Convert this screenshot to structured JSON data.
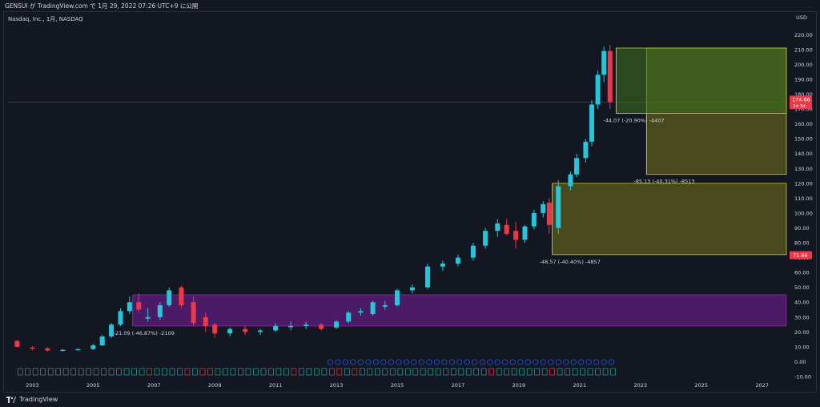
{
  "header": {
    "publish_text": "GENSUI が TradingView.com で 1月 29, 2022 07:26 UTC+9 に公開"
  },
  "symbol": {
    "label": "Nasdaq, Inc., 1月, NASDAQ"
  },
  "footer": {
    "brand": "TradingView",
    "logo_icon": "tradingview-logo-icon"
  },
  "price_scale": {
    "currency": "USD",
    "ticks": [
      "220.00",
      "210.00",
      "200.00",
      "190.00",
      "180.00",
      "170.00",
      "160.00",
      "150.00",
      "140.00",
      "130.00",
      "120.00",
      "110.00",
      "100.00",
      "90.00",
      "80.00",
      "70.00",
      "60.00",
      "50.00",
      "40.00",
      "30.00",
      "20.00",
      "10.00",
      "0.00",
      "-10.00"
    ],
    "last_price_label": "174.66",
    "last_price_countdown": "2d 3d",
    "marker_label": "71.66"
  },
  "time_axis": {
    "labels": [
      "2003",
      "2005",
      "2007",
      "2009",
      "2011",
      "2013",
      "2015",
      "2017",
      "2019",
      "2021",
      "2023",
      "2025",
      "2027"
    ]
  },
  "colors": {
    "background": "#131722",
    "up": "#26c6da",
    "down": "#f23645",
    "purple_box": "#7b1fa2",
    "olive_box": "#6d6a1a",
    "green_box": "#3a6b1e",
    "box_border": "#c0ca33",
    "grid": "#1e222d",
    "axis_text": "#d1d4dc",
    "earnings_border": "#787b86",
    "dividend_border": "#2962ff",
    "price_tag": "#f23645"
  },
  "annotations": {
    "box1": "-21.09 (-46.87%) -2109",
    "box2": "-48.57 (-40.40%) -4857",
    "box3": "-85.13 (-40.31%) -8513",
    "box4": "-44.07 (-20.90%) -4407"
  },
  "chart_data": {
    "type": "candlestick",
    "title": "",
    "xlabel": "",
    "ylabel": "USD",
    "ylim": [
      -10,
      225
    ],
    "xlim": [
      2002.2,
      2027.8
    ],
    "grid": false,
    "last_price": 174.66,
    "candles": [
      {
        "t": 2002.5,
        "o": 14,
        "h": 14.5,
        "l": 10,
        "c": 10
      },
      {
        "t": 2003.0,
        "o": 9.5,
        "h": 10.5,
        "l": 8,
        "c": 9
      },
      {
        "t": 2003.5,
        "o": 9,
        "h": 9.5,
        "l": 7,
        "c": 7.5
      },
      {
        "t": 2004.0,
        "o": 7.5,
        "h": 8.5,
        "l": 7,
        "c": 8
      },
      {
        "t": 2004.5,
        "o": 8,
        "h": 9,
        "l": 7.5,
        "c": 8.5
      },
      {
        "t": 2005.0,
        "o": 8.5,
        "h": 12,
        "l": 8,
        "c": 11
      },
      {
        "t": 2005.3,
        "o": 11,
        "h": 18,
        "l": 10.5,
        "c": 17
      },
      {
        "t": 2005.6,
        "o": 17,
        "h": 26,
        "l": 16,
        "c": 25
      },
      {
        "t": 2005.9,
        "o": 25,
        "h": 36,
        "l": 24,
        "c": 34
      },
      {
        "t": 2006.2,
        "o": 34,
        "h": 44,
        "l": 32,
        "c": 40
      },
      {
        "t": 2006.5,
        "o": 40,
        "h": 46,
        "l": 33,
        "c": 35
      },
      {
        "t": 2006.8,
        "o": 29,
        "h": 36,
        "l": 27,
        "c": 30
      },
      {
        "t": 2007.2,
        "o": 30,
        "h": 40,
        "l": 28,
        "c": 38
      },
      {
        "t": 2007.5,
        "o": 38,
        "h": 50,
        "l": 37,
        "c": 48
      },
      {
        "t": 2007.9,
        "o": 50,
        "h": 51,
        "l": 36,
        "c": 38
      },
      {
        "t": 2008.3,
        "o": 40,
        "h": 44,
        "l": 24,
        "c": 26
      },
      {
        "t": 2008.7,
        "o": 30,
        "h": 33,
        "l": 20,
        "c": 24
      },
      {
        "t": 2009.0,
        "o": 25,
        "h": 26,
        "l": 16,
        "c": 19
      },
      {
        "t": 2009.5,
        "o": 19,
        "h": 23,
        "l": 17,
        "c": 22
      },
      {
        "t": 2010.0,
        "o": 22,
        "h": 24,
        "l": 18,
        "c": 20
      },
      {
        "t": 2010.5,
        "o": 20,
        "h": 22,
        "l": 18,
        "c": 21
      },
      {
        "t": 2011.0,
        "o": 21,
        "h": 26,
        "l": 20,
        "c": 24
      },
      {
        "t": 2011.5,
        "o": 24,
        "h": 27,
        "l": 21,
        "c": 24
      },
      {
        "t": 2012.0,
        "o": 24,
        "h": 27,
        "l": 22,
        "c": 25
      },
      {
        "t": 2012.5,
        "o": 25,
        "h": 26,
        "l": 21,
        "c": 22
      },
      {
        "t": 2013.0,
        "o": 23,
        "h": 28,
        "l": 22,
        "c": 27
      },
      {
        "t": 2013.4,
        "o": 27,
        "h": 34,
        "l": 26,
        "c": 33
      },
      {
        "t": 2013.8,
        "o": 33,
        "h": 36,
        "l": 31,
        "c": 34
      },
      {
        "t": 2014.2,
        "o": 32,
        "h": 41,
        "l": 31,
        "c": 40
      },
      {
        "t": 2014.6,
        "o": 37,
        "h": 41,
        "l": 35,
        "c": 38
      },
      {
        "t": 2015.0,
        "o": 38,
        "h": 49,
        "l": 37,
        "c": 48
      },
      {
        "t": 2015.5,
        "o": 48,
        "h": 52,
        "l": 46,
        "c": 50
      },
      {
        "t": 2016.0,
        "o": 50,
        "h": 66,
        "l": 49,
        "c": 64
      },
      {
        "t": 2016.5,
        "o": 64,
        "h": 68,
        "l": 61,
        "c": 66
      },
      {
        "t": 2017.0,
        "o": 66,
        "h": 72,
        "l": 64,
        "c": 70
      },
      {
        "t": 2017.5,
        "o": 70,
        "h": 80,
        "l": 68,
        "c": 78
      },
      {
        "t": 2017.9,
        "o": 78,
        "h": 90,
        "l": 76,
        "c": 88
      },
      {
        "t": 2018.3,
        "o": 88,
        "h": 96,
        "l": 84,
        "c": 93
      },
      {
        "t": 2018.6,
        "o": 92,
        "h": 96,
        "l": 85,
        "c": 86
      },
      {
        "t": 2018.9,
        "o": 88,
        "h": 94,
        "l": 76,
        "c": 82
      },
      {
        "t": 2019.2,
        "o": 82,
        "h": 92,
        "l": 80,
        "c": 91
      },
      {
        "t": 2019.5,
        "o": 91,
        "h": 102,
        "l": 89,
        "c": 100
      },
      {
        "t": 2019.8,
        "o": 100,
        "h": 108,
        "l": 97,
        "c": 106
      },
      {
        "t": 2020.0,
        "o": 107,
        "h": 110,
        "l": 86,
        "c": 92
      },
      {
        "t": 2020.3,
        "o": 90,
        "h": 122,
        "l": 86,
        "c": 118
      },
      {
        "t": 2020.7,
        "o": 118,
        "h": 128,
        "l": 115,
        "c": 126
      },
      {
        "t": 2020.9,
        "o": 126,
        "h": 140,
        "l": 124,
        "c": 137
      },
      {
        "t": 2021.2,
        "o": 137,
        "h": 150,
        "l": 134,
        "c": 148
      },
      {
        "t": 2021.4,
        "o": 148,
        "h": 176,
        "l": 145,
        "c": 173
      },
      {
        "t": 2021.6,
        "o": 173,
        "h": 196,
        "l": 170,
        "c": 193
      },
      {
        "t": 2021.8,
        "o": 193,
        "h": 212,
        "l": 188,
        "c": 209
      },
      {
        "t": 2022.0,
        "o": 209,
        "h": 213,
        "l": 170,
        "c": 174.66
      }
    ],
    "ranges": [
      {
        "x0": 2006.3,
        "x1": 2027.8,
        "ytop": 45,
        "ybottom": 24,
        "kind": "purple",
        "label_key": "box1"
      },
      {
        "x0": 2020.1,
        "x1": 2027.8,
        "ytop": 120,
        "ybottom": 72,
        "kind": "olive",
        "label_key": "box2"
      },
      {
        "x0": 2023.2,
        "x1": 2027.8,
        "ytop": 211,
        "ybottom": 126,
        "kind": "olive",
        "label_key": "box3"
      },
      {
        "x0": 2022.2,
        "x1": 2027.8,
        "ytop": 211,
        "ybottom": 167,
        "kind": "green",
        "label_key": "box4"
      }
    ]
  }
}
